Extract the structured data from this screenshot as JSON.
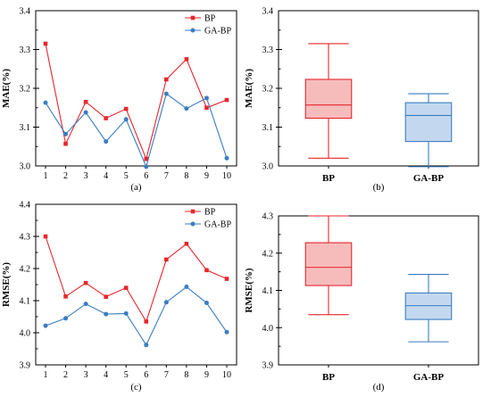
{
  "chart_data": [
    {
      "type": "line",
      "panel_label": "(a)",
      "ylabel": "MAE(%)",
      "x": [
        1,
        2,
        3,
        4,
        5,
        6,
        7,
        8,
        9,
        10
      ],
      "ylim": [
        3.0,
        3.4
      ],
      "yticks": [
        "3.0",
        "3.1",
        "3.2",
        "3.3",
        "3.4"
      ],
      "series": [
        {
          "name": "BP",
          "color": "#e8262b",
          "marker": "square",
          "values": [
            3.315,
            3.057,
            3.165,
            3.123,
            3.147,
            3.018,
            3.223,
            3.275,
            3.15,
            3.17
          ]
        },
        {
          "name": "GA-BP",
          "color": "#3a7dc2",
          "marker": "circle",
          "values": [
            3.163,
            3.082,
            3.138,
            3.063,
            3.12,
            2.998,
            3.186,
            3.148,
            3.175,
            3.02
          ]
        }
      ],
      "legend": "top-right"
    },
    {
      "type": "box",
      "panel_label": "(b)",
      "ylabel": "MAE(%)",
      "categories": [
        "BP",
        "GA-BP"
      ],
      "ylim": [
        3.0,
        3.4
      ],
      "yticks": [
        "3.0",
        "3.1",
        "3.2",
        "3.3",
        "3.4"
      ],
      "boxes": [
        {
          "name": "BP",
          "min": 3.02,
          "q1": 3.123,
          "median": 3.157,
          "q3": 3.223,
          "max": 3.315,
          "fill": "#f6bcbc",
          "stroke": "#e8262b"
        },
        {
          "name": "GA-BP",
          "min": 2.998,
          "q1": 3.063,
          "median": 3.13,
          "q3": 3.163,
          "max": 3.186,
          "fill": "#c3d8ee",
          "stroke": "#3a7dc2"
        }
      ]
    },
    {
      "type": "line",
      "panel_label": "(c)",
      "ylabel": "RMSE(%)",
      "x": [
        1,
        2,
        3,
        4,
        5,
        6,
        7,
        8,
        9,
        10
      ],
      "ylim": [
        3.9,
        4.4
      ],
      "yticks": [
        "3.9",
        "4.0",
        "4.1",
        "4.2",
        "4.3",
        "4.4"
      ],
      "series": [
        {
          "name": "BP",
          "color": "#e8262b",
          "marker": "square",
          "values": [
            4.3,
            4.113,
            4.155,
            4.112,
            4.14,
            4.035,
            4.228,
            4.277,
            4.195,
            4.168
          ]
        },
        {
          "name": "GA-BP",
          "color": "#3a7dc2",
          "marker": "circle",
          "values": [
            4.022,
            4.045,
            4.09,
            4.058,
            4.06,
            3.962,
            4.095,
            4.143,
            4.093,
            4.002
          ]
        }
      ],
      "legend": "top-right"
    },
    {
      "type": "box",
      "panel_label": "(d)",
      "ylabel": "RMSE(%)",
      "categories": [
        "BP",
        "GA-BP"
      ],
      "ylim": [
        3.9,
        4.3
      ],
      "yticks": [
        "3.9",
        "4.0",
        "4.1",
        "4.2",
        "4.3"
      ],
      "boxes": [
        {
          "name": "BP",
          "min": 4.035,
          "q1": 4.113,
          "median": 4.162,
          "q3": 4.228,
          "max": 4.3,
          "fill": "#f6bcbc",
          "stroke": "#e8262b"
        },
        {
          "name": "GA-BP",
          "min": 3.962,
          "q1": 4.022,
          "median": 4.059,
          "q3": 4.093,
          "max": 4.143,
          "fill": "#c3d8ee",
          "stroke": "#3a7dc2"
        }
      ]
    }
  ]
}
